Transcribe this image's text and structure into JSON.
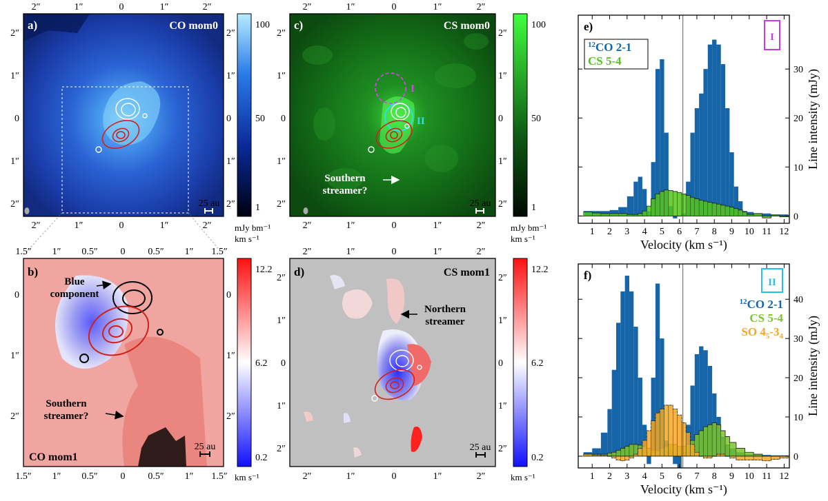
{
  "panels": {
    "a": {
      "label": "a)",
      "title": "CO mom0",
      "scalebar": "25 au",
      "xticks": [
        "2″",
        "1″",
        "0",
        "1″",
        "2″"
      ],
      "yticks": [
        "2″",
        "1″",
        "0",
        "1″",
        "2″"
      ],
      "colorbar": {
        "ticks": [
          "100",
          "50",
          "1"
        ],
        "unit1": "mJy bm⁻¹",
        "unit2": "km s⁻¹"
      },
      "colors": {
        "bg": "#1a3aa8",
        "bright": "#a8e4ff"
      }
    },
    "b": {
      "label": "b)",
      "title": "CO mom1",
      "scalebar": "25 au",
      "xticks": [
        "1.5″",
        "1″",
        "0.5″",
        "0",
        "0.5″",
        "1″",
        "1.5″"
      ],
      "yticks": [
        "0",
        "1″",
        "2″"
      ],
      "annotations": {
        "blue": "Blue",
        "component": "component",
        "southern": "Southern",
        "streamer": "streamer?"
      },
      "colorbar": {
        "ticks": [
          "12.2",
          "6.2",
          "0.2"
        ],
        "unit": "km s⁻¹"
      }
    },
    "c": {
      "label": "c)",
      "title": "CS mom0",
      "scalebar": "25 au",
      "xticks": [
        "2″",
        "1″",
        "0",
        "1″",
        "2″"
      ],
      "yticks": [
        "2″",
        "1″",
        "0",
        "1″",
        "2″"
      ],
      "region1": "I",
      "region2": "II",
      "annotations": {
        "southern": "Southern",
        "streamer": "streamer?"
      },
      "colorbar": {
        "ticks": [
          "100",
          "50",
          "1"
        ],
        "unit1": "mJy bm⁻¹",
        "unit2": "km s⁻¹"
      }
    },
    "d": {
      "label": "d)",
      "title": "CS mom1",
      "scalebar": "25 au",
      "xticks": [
        "2″",
        "1″",
        "0",
        "1″",
        "2″"
      ],
      "yticks": [
        "2″",
        "1″",
        "0",
        "1″",
        "2″"
      ],
      "annotations": {
        "northern": "Northern",
        "streamer": "streamer"
      },
      "colorbar": {
        "ticks": [
          "12.2",
          "6.2",
          "0.2"
        ],
        "unit": "km s⁻¹"
      }
    }
  },
  "chart_data": [
    {
      "type": "bar",
      "panel": "e)",
      "region": "I",
      "xlabel": "Velocity (km s⁻¹)",
      "ylabel": "Line intensity (mJy)",
      "xlim": [
        0.2,
        12.3
      ],
      "ylim": [
        -1.5,
        41
      ],
      "xticks": [
        "1",
        "2",
        "3",
        "4",
        "5",
        "6",
        "7",
        "8",
        "9",
        "10",
        "11",
        "12"
      ],
      "yticks": [
        "0",
        "10",
        "20",
        "30"
      ],
      "vsys": 6.2,
      "x": [
        0.75,
        1.25,
        1.75,
        2.25,
        2.75,
        3.25,
        3.5,
        3.75,
        4.0,
        4.25,
        4.5,
        4.75,
        5.0,
        5.25,
        5.5,
        5.75,
        6.0,
        6.25,
        6.5,
        6.75,
        7.0,
        7.25,
        7.5,
        7.75,
        8.0,
        8.25,
        8.5,
        8.75,
        9.0,
        9.25,
        9.5,
        9.75,
        10.0,
        10.5,
        11.0,
        11.5,
        12.0
      ],
      "series": [
        {
          "name": "12CO 2-1",
          "label_sup": "12",
          "label_rest": "CO 2-1",
          "color": "#1565a8",
          "values": [
            1,
            1,
            1,
            1.2,
            1.8,
            4,
            7,
            8,
            5.5,
            1,
            11,
            30,
            32,
            17,
            2,
            -0.5,
            0,
            0.5,
            7,
            17,
            22,
            25,
            30,
            35,
            36,
            35,
            31,
            22,
            13,
            6,
            3,
            1,
            0.8,
            0.5,
            0.5,
            0.3,
            0.3
          ]
        },
        {
          "name": "CS 5-4",
          "color": "#55c41c",
          "values": [
            0.8,
            0.6,
            0.5,
            0.5,
            0.5,
            0.3,
            0.3,
            0.5,
            1,
            2,
            3.5,
            4.5,
            5,
            5.3,
            5.2,
            5,
            4.8,
            4.5,
            4.2,
            3.8,
            3.5,
            3.2,
            3,
            2.8,
            2.6,
            2.4,
            2.2,
            2,
            1.8,
            1.5,
            1.2,
            0.8,
            0.3,
            0.5,
            -0.4,
            0.2,
            -0.2
          ]
        }
      ]
    },
    {
      "type": "bar",
      "panel": "f)",
      "region": "II",
      "xlabel": "Velocity (km s⁻¹)",
      "ylabel": "Line intensity (mJy)",
      "xlim": [
        0.2,
        12.3
      ],
      "ylim": [
        -3,
        49
      ],
      "xticks": [
        "1",
        "2",
        "3",
        "4",
        "5",
        "6",
        "7",
        "8",
        "9",
        "10",
        "11",
        "12"
      ],
      "yticks": [
        "0",
        "10",
        "20",
        "30",
        "40"
      ],
      "vsys": 6.2,
      "x": [
        0.75,
        1.25,
        1.75,
        2.0,
        2.25,
        2.5,
        2.75,
        3.0,
        3.25,
        3.5,
        3.75,
        4.0,
        4.25,
        4.5,
        4.75,
        5.0,
        5.25,
        5.5,
        5.75,
        6.0,
        6.25,
        6.5,
        6.75,
        7.0,
        7.25,
        7.5,
        7.75,
        8.0,
        8.25,
        8.5,
        8.75,
        9.0,
        9.5,
        10.0,
        10.5,
        11.0,
        11.5,
        12.0
      ],
      "series": [
        {
          "name": "12CO 2-1",
          "label_sup": "12",
          "label_rest": "CO 2-1",
          "color": "#1565a8",
          "values": [
            1,
            2,
            6,
            12,
            22,
            34,
            42,
            46,
            42,
            33,
            20,
            8,
            -2,
            20,
            44,
            30,
            4,
            2,
            -2,
            -3,
            1,
            8,
            18,
            26,
            28,
            27,
            23,
            16,
            10,
            5,
            3,
            2,
            1,
            0.5,
            0.5,
            0.3,
            0.2,
            0.2
          ]
        },
        {
          "name": "CS 5-4",
          "color": "#7cc42a",
          "values": [
            0.5,
            0.5,
            0.5,
            0.8,
            1,
            1.5,
            2,
            2.5,
            3,
            3,
            2.8,
            2.5,
            2,
            1.5,
            1.5,
            2,
            2.5,
            3,
            3,
            2.5,
            2.5,
            3,
            4,
            5.5,
            6.5,
            7.5,
            8,
            8.5,
            8,
            6.5,
            5,
            3.5,
            2,
            1,
            0.5,
            0,
            0,
            0
          ]
        },
        {
          "name": "SO 45-34",
          "label_rest": "SO 4",
          "label_sub1": "5",
          "label_mid": "-3",
          "label_sub2": "4",
          "color": "#f6a626",
          "values": [
            0.5,
            0.3,
            0.2,
            0,
            -0.5,
            -1,
            -1.2,
            -1,
            -0.5,
            0.5,
            2,
            4,
            6.5,
            9,
            11,
            12,
            13,
            13,
            12,
            10.5,
            8.5,
            6,
            3,
            1,
            0,
            -0.5,
            -0.5,
            0,
            0.5,
            0.5,
            0,
            -0.5,
            -1,
            -1,
            -1,
            -1.2,
            -0.8,
            -0.5
          ]
        }
      ]
    }
  ]
}
